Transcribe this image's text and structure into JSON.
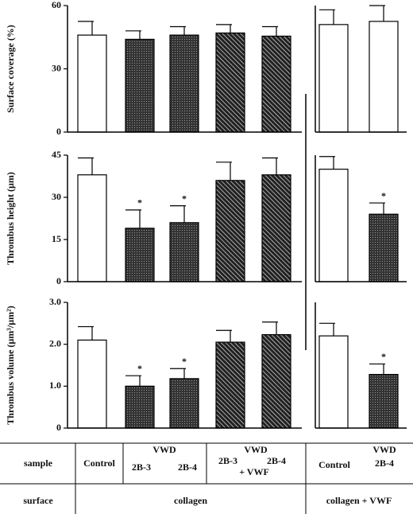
{
  "chart_data": [
    {
      "type": "bar",
      "ylabel": "Surface coverage (%)",
      "ylim": [
        0,
        60
      ],
      "yticks": [
        0,
        30,
        60
      ],
      "values": [
        46,
        44,
        46,
        47,
        45.5
      ],
      "errors": [
        6.5,
        4,
        4,
        4,
        4.5
      ],
      "fills": [
        "white",
        "dots",
        "dots",
        "hatch",
        "hatch"
      ],
      "significance": [
        null,
        null,
        null,
        null,
        null
      ]
    },
    {
      "type": "bar",
      "ylim": [
        0,
        60
      ],
      "values": [
        51,
        52.5
      ],
      "errors": [
        7,
        7.5
      ],
      "fills": [
        "white",
        "white"
      ],
      "significance": [
        null,
        null
      ]
    },
    {
      "type": "bar",
      "ylabel": "Thrombus height (µm)",
      "ylim": [
        0,
        45
      ],
      "yticks": [
        0,
        15,
        30,
        45
      ],
      "values": [
        38,
        19,
        21,
        36,
        38
      ],
      "errors": [
        6,
        6.5,
        6,
        6.5,
        6
      ],
      "fills": [
        "white",
        "dots",
        "dots",
        "hatch",
        "hatch"
      ],
      "significance": [
        null,
        "*",
        "*",
        null,
        null
      ]
    },
    {
      "type": "bar",
      "ylim": [
        0,
        45
      ],
      "values": [
        40,
        24
      ],
      "errors": [
        4.5,
        4
      ],
      "fills": [
        "white",
        "dots"
      ],
      "significance": [
        null,
        "*"
      ]
    },
    {
      "type": "bar",
      "ylabel": "Thrombus volume (µm³/µm²)",
      "ylim": [
        0,
        3
      ],
      "yticks": [
        0,
        {
          "value": 1,
          "label": "1.0"
        },
        {
          "value": 2,
          "label": "2.0"
        },
        {
          "value": 3,
          "label": "3.0"
        }
      ],
      "values": [
        2.1,
        1.0,
        1.18,
        2.05,
        2.23
      ],
      "errors": [
        0.32,
        0.25,
        0.24,
        0.28,
        0.3
      ],
      "fills": [
        "white",
        "dots",
        "dots",
        "hatch",
        "hatch"
      ],
      "significance": [
        null,
        "*",
        "*",
        null,
        null
      ]
    },
    {
      "type": "bar",
      "ylim": [
        0,
        3
      ],
      "values": [
        2.2,
        1.28
      ],
      "errors": [
        0.3,
        0.25
      ],
      "fills": [
        "white",
        "dots"
      ],
      "significance": [
        null,
        "*"
      ]
    }
  ],
  "table": {
    "sample_header": "sample",
    "surface_header": "surface",
    "control_left": "Control",
    "vwd_left": "VWD",
    "vwd_left_a": "2B-3",
    "vwd_left_b": "2B-4",
    "vwf_title": "VWD",
    "vwf_a": "2B-3",
    "vwf_b": "2B-4",
    "vwf_extra": "+ VWF",
    "control_right": "Control",
    "vwd_right": "VWD",
    "vwd_right_a": "2B-4",
    "surface_left": "collagen",
    "surface_right": "collagen + VWF"
  }
}
